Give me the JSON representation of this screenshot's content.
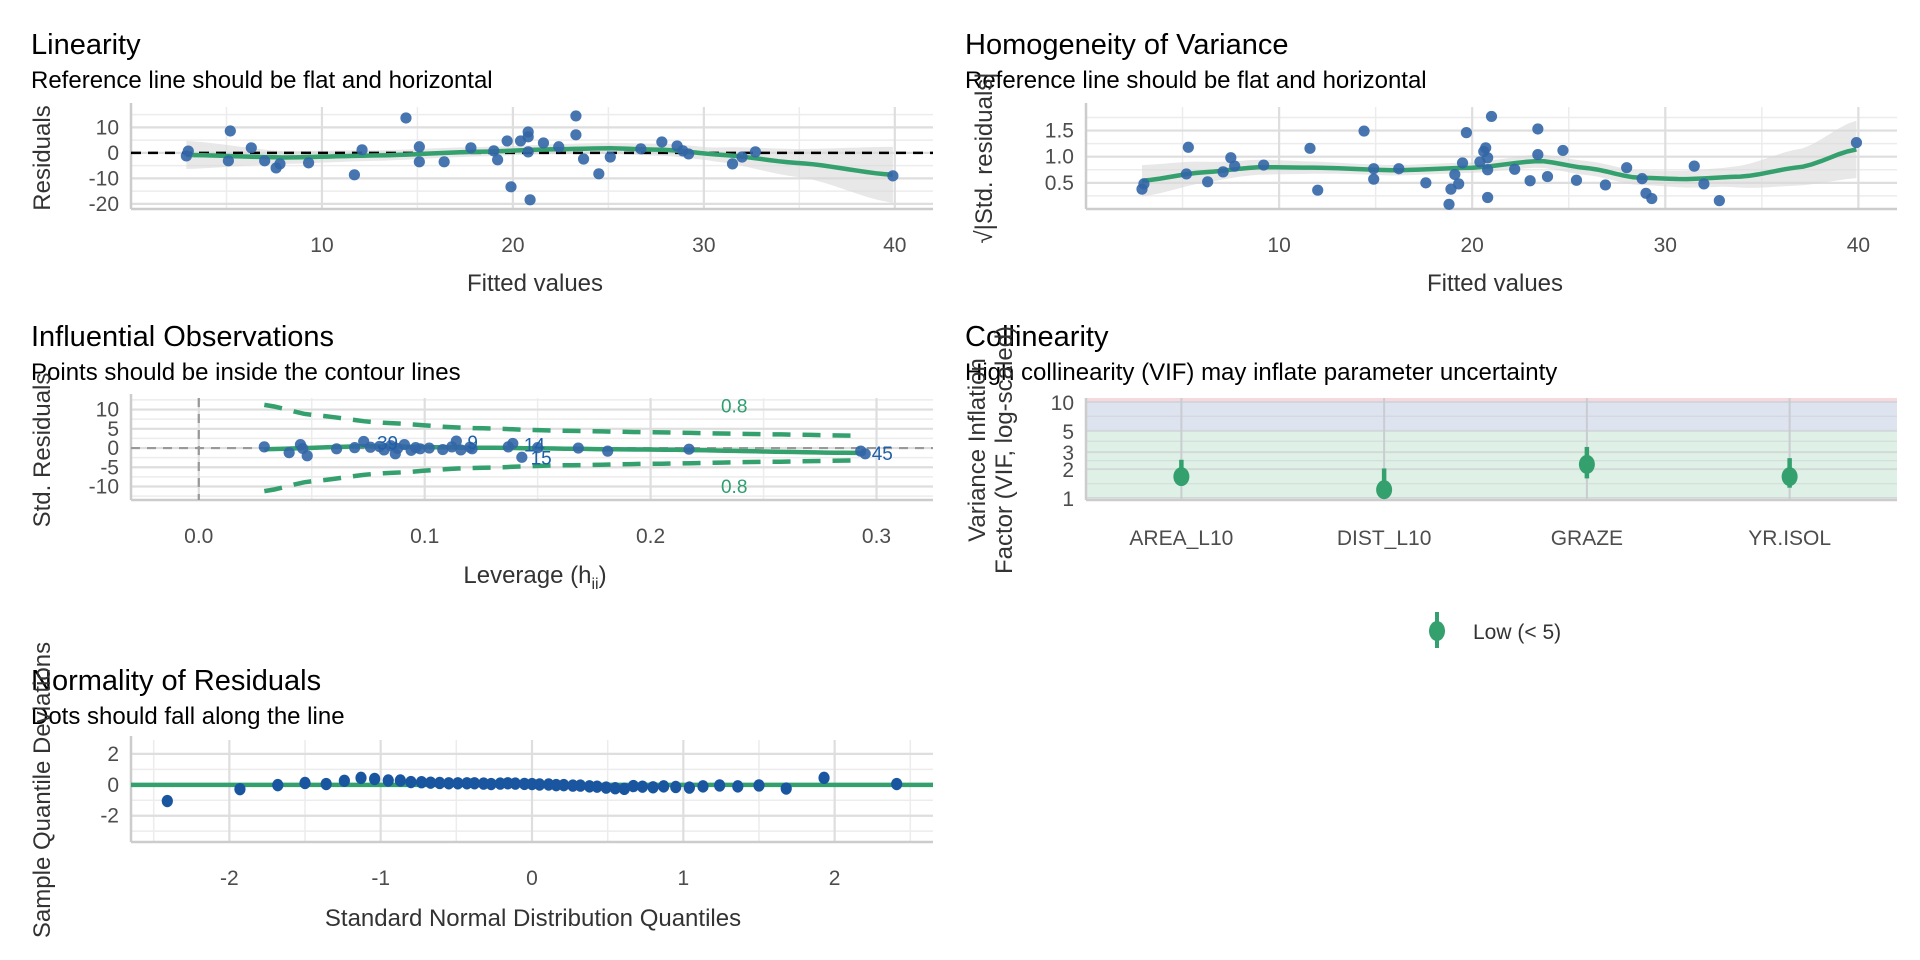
{
  "colors": {
    "point": "#3366a6",
    "qq_point": "#1a56a0",
    "smooth": "#34a06e",
    "ci_band": "#d9d9d9",
    "ref_line": "#000000",
    "grid_major": "#dedede",
    "grid_minor": "#ececec",
    "vif_low_band": "#dff0e6",
    "vif_mod_band": "#dde3ef",
    "vif_high_band": "#f5d9dd",
    "label": "#1f5fa8"
  },
  "chart_data": [
    {
      "id": "linearity",
      "type": "scatter",
      "title": "Linearity",
      "subtitle": "Reference line should be flat and horizontal",
      "xlabel": "Fitted values",
      "ylabel": "Residuals",
      "xlim": [
        0,
        42
      ],
      "ylim": [
        -22,
        18
      ],
      "xticks": [
        10,
        20,
        30,
        40
      ],
      "yticks": [
        10,
        0,
        -10,
        -20
      ],
      "reference_line": 0,
      "points": [
        [
          2.9,
          -1.2
        ],
        [
          3.0,
          0.7
        ],
        [
          5.2,
          8.6
        ],
        [
          5.1,
          -3.1
        ],
        [
          6.3,
          2.0
        ],
        [
          7.0,
          -3.1
        ],
        [
          7.6,
          -5.9
        ],
        [
          7.8,
          -4.3
        ],
        [
          9.3,
          -3.9
        ],
        [
          11.7,
          -8.6
        ],
        [
          12.1,
          1.2
        ],
        [
          14.4,
          13.7
        ],
        [
          15.1,
          2.4
        ],
        [
          15.1,
          -3.5
        ],
        [
          16.4,
          -3.5
        ],
        [
          17.8,
          2.0
        ],
        [
          19.0,
          0.8
        ],
        [
          19.2,
          -2.7
        ],
        [
          19.7,
          4.7
        ],
        [
          19.9,
          -13.3
        ],
        [
          20.4,
          4.7
        ],
        [
          20.8,
          8.2
        ],
        [
          20.8,
          6.3
        ],
        [
          20.8,
          0.4
        ],
        [
          20.9,
          -18.4
        ],
        [
          21.6,
          3.9
        ],
        [
          22.4,
          2.4
        ],
        [
          23.3,
          14.5
        ],
        [
          23.3,
          7.1
        ],
        [
          23.7,
          -2.4
        ],
        [
          24.5,
          -8.2
        ],
        [
          25.1,
          -1.6
        ],
        [
          26.7,
          1.6
        ],
        [
          27.8,
          4.3
        ],
        [
          28.6,
          2.7
        ],
        [
          28.9,
          0.8
        ],
        [
          29.2,
          -0.4
        ],
        [
          31.5,
          -4.3
        ],
        [
          32.0,
          -1.6
        ],
        [
          32.7,
          0.4
        ],
        [
          39.9,
          -9.0
        ]
      ],
      "smooth": [
        [
          2.9,
          -0.8
        ],
        [
          8,
          -1.8
        ],
        [
          13,
          -1.0
        ],
        [
          18,
          0.4
        ],
        [
          22,
          1.4
        ],
        [
          25,
          1.8
        ],
        [
          28,
          1.2
        ],
        [
          31,
          -0.8
        ],
        [
          35,
          -4.0
        ],
        [
          39.9,
          -8.6
        ]
      ],
      "smooth_ci_halfwidth": [
        [
          2.9,
          5.5
        ],
        [
          8,
          2.5
        ],
        [
          14,
          2.0
        ],
        [
          20,
          1.8
        ],
        [
          25,
          2.2
        ],
        [
          30,
          2.5
        ],
        [
          35,
          5.5
        ],
        [
          39.9,
          11.0
        ]
      ]
    },
    {
      "id": "homogeneity",
      "type": "scatter",
      "title": "Homogeneity of Variance",
      "subtitle": "Reference line should be flat and horizontal",
      "xlabel": "Fitted values",
      "ylabel": "√|Std. residuals|",
      "xlim": [
        0,
        42
      ],
      "ylim": [
        0,
        1.95
      ],
      "xticks": [
        10,
        20,
        30,
        40
      ],
      "yticks": [
        1.5,
        1.0,
        0.5
      ],
      "points": [
        [
          2.9,
          0.38
        ],
        [
          3.0,
          0.48
        ],
        [
          5.2,
          0.67
        ],
        [
          5.3,
          1.18
        ],
        [
          6.3,
          0.52
        ],
        [
          7.1,
          0.71
        ],
        [
          7.5,
          0.98
        ],
        [
          7.7,
          0.82
        ],
        [
          9.2,
          0.84
        ],
        [
          11.6,
          1.16
        ],
        [
          12.0,
          0.36
        ],
        [
          14.4,
          1.49
        ],
        [
          14.9,
          0.77
        ],
        [
          14.9,
          0.57
        ],
        [
          16.2,
          0.77
        ],
        [
          17.6,
          0.5
        ],
        [
          18.8,
          0.09
        ],
        [
          18.9,
          0.38
        ],
        [
          19.1,
          0.66
        ],
        [
          19.3,
          0.48
        ],
        [
          19.5,
          0.88
        ],
        [
          19.7,
          1.46
        ],
        [
          20.4,
          0.9
        ],
        [
          20.6,
          1.1
        ],
        [
          20.7,
          1.17
        ],
        [
          20.8,
          0.98
        ],
        [
          20.8,
          0.75
        ],
        [
          20.8,
          0.22
        ],
        [
          21.0,
          1.77
        ],
        [
          22.2,
          0.76
        ],
        [
          23.0,
          0.54
        ],
        [
          23.4,
          1.53
        ],
        [
          23.4,
          1.04
        ],
        [
          23.9,
          0.62
        ],
        [
          24.7,
          1.12
        ],
        [
          25.4,
          0.55
        ],
        [
          26.9,
          0.46
        ],
        [
          28.0,
          0.79
        ],
        [
          28.8,
          0.58
        ],
        [
          29.0,
          0.3
        ],
        [
          29.3,
          0.2
        ],
        [
          31.5,
          0.82
        ],
        [
          32.0,
          0.48
        ],
        [
          32.8,
          0.16
        ],
        [
          39.9,
          1.27
        ]
      ],
      "smooth": [
        [
          2.9,
          0.54
        ],
        [
          6,
          0.7
        ],
        [
          9,
          0.8
        ],
        [
          12,
          0.79
        ],
        [
          16,
          0.74
        ],
        [
          20,
          0.79
        ],
        [
          23.5,
          0.92
        ],
        [
          26,
          0.78
        ],
        [
          28.5,
          0.6
        ],
        [
          31,
          0.57
        ],
        [
          34,
          0.62
        ],
        [
          37,
          0.8
        ],
        [
          39.9,
          1.14
        ]
      ],
      "smooth_ci_halfwidth": [
        [
          2.9,
          0.3
        ],
        [
          8,
          0.15
        ],
        [
          14,
          0.1
        ],
        [
          20,
          0.1
        ],
        [
          24,
          0.13
        ],
        [
          29,
          0.14
        ],
        [
          33,
          0.18
        ],
        [
          37,
          0.35
        ],
        [
          39.9,
          0.55
        ]
      ]
    },
    {
      "id": "influential",
      "type": "scatter",
      "title": "Influential Observations",
      "subtitle": "Points should be inside the contour lines",
      "xlabel": "Leverage (h",
      "xlabel_sub": "ii",
      "xlabel_close": ")",
      "ylabel": "Std. Residuals",
      "xlim": [
        -0.03,
        0.325
      ],
      "ylim": [
        -13.5,
        13
      ],
      "xticks": [
        0.0,
        0.1,
        0.2,
        0.3
      ],
      "xtick_labels": [
        "0.0",
        "0.1",
        "0.2",
        "0.3"
      ],
      "yticks": [
        10,
        5,
        0,
        -5,
        -10
      ],
      "contour_label": "0.8",
      "points": [
        [
          0.029,
          0.3
        ],
        [
          0.04,
          -1.2
        ],
        [
          0.045,
          0.9
        ],
        [
          0.046,
          -0.1
        ],
        [
          0.048,
          -2.0
        ],
        [
          0.061,
          -0.2
        ],
        [
          0.069,
          0.1
        ],
        [
          0.073,
          1.7
        ],
        [
          0.076,
          0.2
        ],
        [
          0.08,
          0.4
        ],
        [
          0.082,
          -0.5
        ],
        [
          0.085,
          0.6
        ],
        [
          0.087,
          -1.5
        ],
        [
          0.088,
          -0.1
        ],
        [
          0.091,
          0.9
        ],
        [
          0.094,
          -0.6
        ],
        [
          0.096,
          0.1
        ],
        [
          0.098,
          -0.2
        ],
        [
          0.102,
          0.0
        ],
        [
          0.108,
          -0.4
        ],
        [
          0.112,
          0.3
        ],
        [
          0.114,
          1.8
        ],
        [
          0.116,
          -0.5
        ],
        [
          0.12,
          0.2
        ],
        [
          0.121,
          -0.2
        ],
        [
          0.137,
          0.3
        ],
        [
          0.139,
          1.2
        ],
        [
          0.143,
          -2.4
        ],
        [
          0.15,
          0.1
        ],
        [
          0.168,
          0.0
        ],
        [
          0.181,
          -0.8
        ],
        [
          0.217,
          -0.3
        ],
        [
          0.293,
          -0.8
        ],
        [
          0.295,
          -1.5
        ]
      ],
      "labels": [
        {
          "text": "39",
          "x": 0.078,
          "y": 1.5
        },
        {
          "text": "9",
          "x": 0.118,
          "y": 1.6
        },
        {
          "text": "14",
          "x": 0.143,
          "y": 0.9
        },
        {
          "text": "15",
          "x": 0.146,
          "y": -2.5
        },
        {
          "text": "45",
          "x": 0.297,
          "y": -1.3
        }
      ],
      "smooth": [
        [
          0.029,
          -0.3
        ],
        [
          0.075,
          0.5
        ],
        [
          0.12,
          0.1
        ],
        [
          0.2,
          -0.4
        ],
        [
          0.295,
          -1.3
        ]
      ],
      "contour_upper": [
        [
          0.029,
          11.2
        ],
        [
          0.05,
          8.6
        ],
        [
          0.08,
          6.6
        ],
        [
          0.12,
          5.2
        ],
        [
          0.16,
          4.5
        ],
        [
          0.2,
          4.1
        ],
        [
          0.25,
          3.6
        ],
        [
          0.293,
          3.2
        ]
      ],
      "contour_lower": [
        [
          0.029,
          -11.2
        ],
        [
          0.05,
          -8.6
        ],
        [
          0.08,
          -6.6
        ],
        [
          0.12,
          -5.2
        ],
        [
          0.16,
          -4.5
        ],
        [
          0.2,
          -4.1
        ],
        [
          0.25,
          -3.6
        ],
        [
          0.293,
          -3.2
        ]
      ]
    },
    {
      "id": "collinearity",
      "type": "scatter",
      "title": "Collinearity",
      "subtitle": "High collinearity (VIF) may inflate parameter uncertainty",
      "xlabel": "",
      "ylabel": "Variance Inflation\nFactor (VIF, log-scaled)",
      "ylabel_lines": [
        "Variance Inflation",
        "Factor (VIF, log-scaled)"
      ],
      "yscale": "log",
      "ylim": [
        1,
        11
      ],
      "yticks": [
        1,
        2,
        3,
        5,
        10
      ],
      "categories": [
        "AREA_L10",
        "DIST_L10",
        "GRAZE",
        "YR.ISOL"
      ],
      "values": [
        1.67,
        1.22,
        2.24,
        1.67
      ],
      "ci_low": [
        1.34,
        1.0,
        1.6,
        1.28
      ],
      "ci_high": [
        2.5,
        2.03,
        3.4,
        2.6
      ],
      "bands": [
        {
          "name": "low",
          "from": 1,
          "to": 5
        },
        {
          "name": "moderate",
          "from": 5,
          "to": 10
        },
        {
          "name": "high",
          "from": 10,
          "to": 11
        }
      ],
      "legend": {
        "entries": [
          "Low (< 5)"
        ],
        "position": "bottom"
      }
    },
    {
      "id": "normality",
      "type": "scatter",
      "title": "Normality of Residuals",
      "subtitle": "Dots should fall along the line",
      "xlabel": "Standard Normal Distribution Quantiles",
      "ylabel": "Sample Quantile Deviations",
      "xlim": [
        -2.65,
        2.65
      ],
      "ylim": [
        -3.7,
        2.9
      ],
      "xticks": [
        -2,
        -1,
        0,
        1,
        2
      ],
      "yticks": [
        2,
        0,
        -2
      ],
      "reference_line": 0,
      "points": [
        [
          -2.41,
          -1.05
        ],
        [
          -1.93,
          -0.28
        ],
        [
          -1.68,
          -0.02
        ],
        [
          -1.5,
          0.12
        ],
        [
          -1.36,
          0.05
        ],
        [
          -1.24,
          0.26
        ],
        [
          -1.13,
          0.45
        ],
        [
          -1.04,
          0.38
        ],
        [
          -0.95,
          0.28
        ],
        [
          -0.87,
          0.28
        ],
        [
          -0.8,
          0.18
        ],
        [
          -0.73,
          0.17
        ],
        [
          -0.67,
          0.14
        ],
        [
          -0.61,
          0.12
        ],
        [
          -0.55,
          0.1
        ],
        [
          -0.49,
          0.1
        ],
        [
          -0.43,
          0.1
        ],
        [
          -0.38,
          0.1
        ],
        [
          -0.32,
          0.08
        ],
        [
          -0.27,
          0.05
        ],
        [
          -0.21,
          0.08
        ],
        [
          -0.16,
          0.1
        ],
        [
          -0.11,
          0.08
        ],
        [
          -0.05,
          0.06
        ],
        [
          0.0,
          0.05
        ],
        [
          0.05,
          0.02
        ],
        [
          0.11,
          0.02
        ],
        [
          0.16,
          -0.02
        ],
        [
          0.21,
          -0.02
        ],
        [
          0.27,
          -0.05
        ],
        [
          0.32,
          -0.05
        ],
        [
          0.38,
          -0.1
        ],
        [
          0.43,
          -0.12
        ],
        [
          0.49,
          -0.18
        ],
        [
          0.55,
          -0.22
        ],
        [
          0.61,
          -0.26
        ],
        [
          0.67,
          -0.08
        ],
        [
          0.73,
          -0.12
        ],
        [
          0.8,
          -0.16
        ],
        [
          0.87,
          -0.1
        ],
        [
          0.95,
          -0.14
        ],
        [
          1.04,
          -0.18
        ],
        [
          1.13,
          -0.1
        ],
        [
          1.24,
          -0.04
        ],
        [
          1.36,
          -0.1
        ],
        [
          1.5,
          -0.04
        ],
        [
          1.68,
          -0.24
        ],
        [
          1.93,
          0.45
        ],
        [
          2.41,
          0.05
        ]
      ]
    }
  ]
}
